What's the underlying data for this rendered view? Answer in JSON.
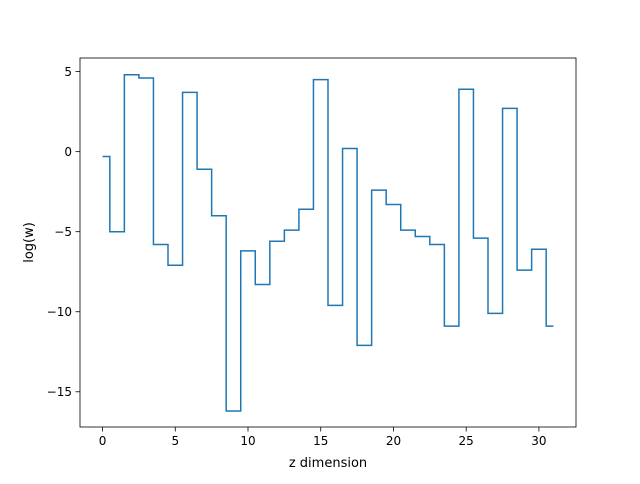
{
  "chart_data": {
    "type": "line",
    "step": "mid",
    "xlabel": "z dimension",
    "ylabel": "log(w)",
    "xlim": [
      -1.55,
      32.55
    ],
    "ylim": [
      -17.2,
      5.85
    ],
    "xticks": [
      0,
      5,
      10,
      15,
      20,
      25,
      30
    ],
    "xtick_labels": [
      "0",
      "5",
      "10",
      "15",
      "20",
      "25",
      "30"
    ],
    "yticks": [
      5,
      0,
      -5,
      -10,
      -15
    ],
    "ytick_labels": [
      "5",
      "0",
      "−5",
      "−10",
      "−15"
    ],
    "grid": false,
    "line_color": "#1f77b4",
    "series": [
      {
        "x": [
          0,
          1,
          2,
          3,
          4,
          5,
          6,
          7,
          8,
          9,
          10,
          11,
          12,
          13,
          14,
          15,
          16,
          17,
          18,
          19,
          20,
          21,
          22,
          23,
          24,
          25,
          26,
          27,
          28,
          29,
          30,
          31
        ],
        "values": [
          -0.3,
          -5.0,
          4.8,
          4.6,
          -5.8,
          -7.1,
          3.7,
          -1.1,
          -4.0,
          -16.2,
          -6.2,
          -8.3,
          -5.6,
          -4.9,
          -3.6,
          4.5,
          -9.6,
          0.2,
          -12.1,
          -2.4,
          -3.3,
          -4.9,
          -5.3,
          -5.8,
          -10.9,
          3.9,
          -5.4,
          -10.1,
          2.7,
          -7.4,
          -6.1,
          -10.9
        ]
      }
    ]
  }
}
